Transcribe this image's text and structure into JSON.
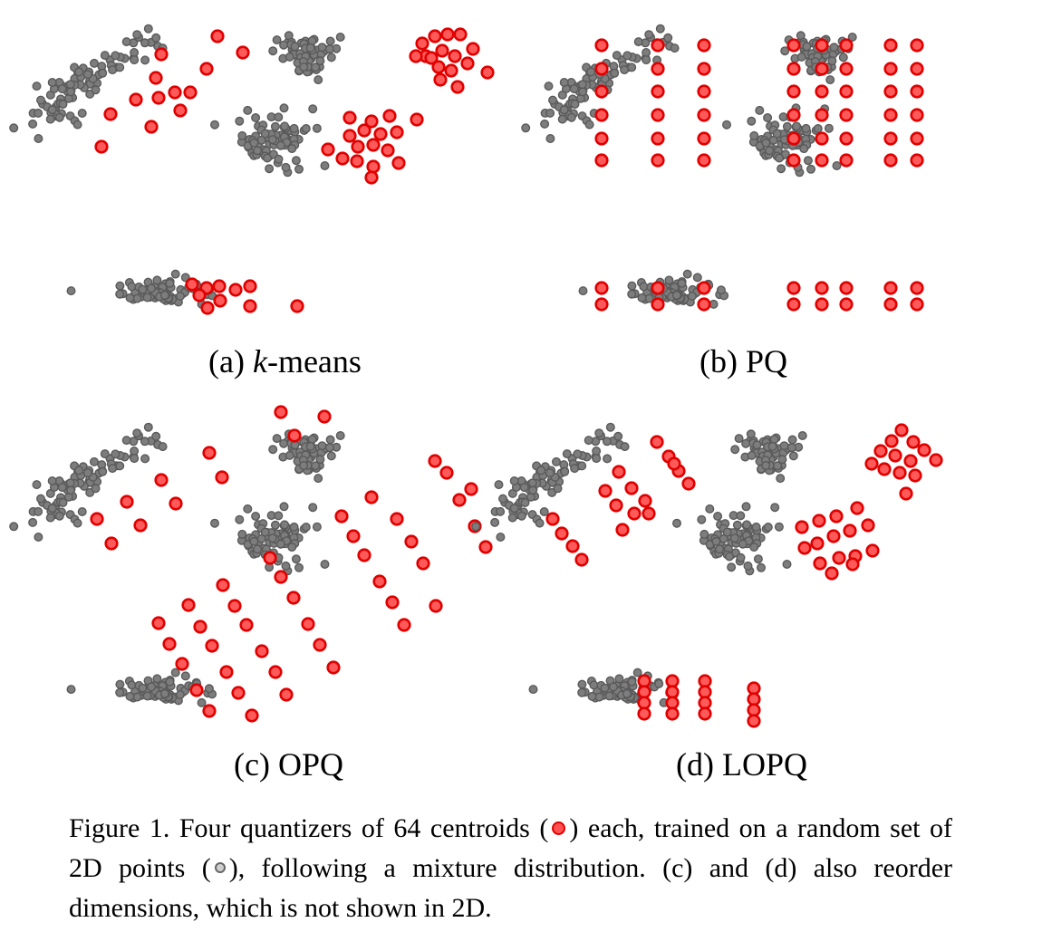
{
  "figure": {
    "point_style": {
      "data_fill": "#7d7d7d",
      "data_stroke": "#5a5a5a",
      "centroid_fill": "#ff5a5a",
      "centroid_stroke": "#e00000"
    },
    "panels": [
      {
        "id": "a",
        "label_prefix": "(a) ",
        "label_italic": "k",
        "label_suffix": "-means"
      },
      {
        "id": "b",
        "label_prefix": "(b) PQ",
        "label_italic": "",
        "label_suffix": ""
      },
      {
        "id": "c",
        "label_prefix": "(c) OPQ",
        "label_italic": "",
        "label_suffix": ""
      },
      {
        "id": "d",
        "label_prefix": "(d) LOPQ",
        "label_italic": "",
        "label_suffix": ""
      }
    ]
  },
  "caption": {
    "part1": "Figure 1. Four quantizers of 64 centroids (",
    "part2": ") each, trained on a random set of 2D points (",
    "part3": "), following a mixture distribution. (c) and (d) also reorder dimensions, which is not shown in 2D."
  }
}
